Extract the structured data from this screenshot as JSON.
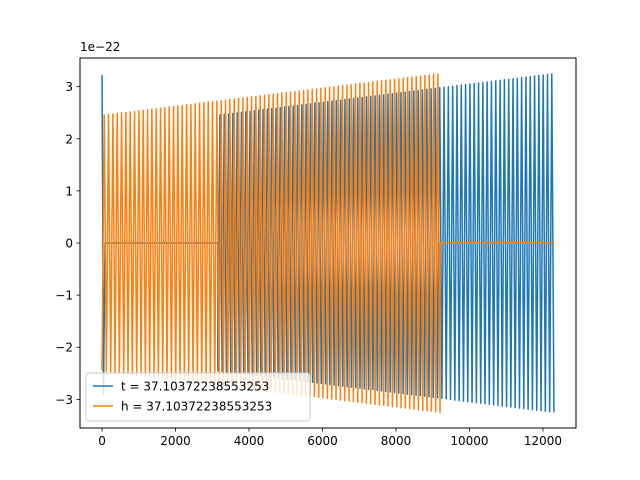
{
  "chart_data": {
    "type": "line",
    "title": "",
    "xlabel": "",
    "ylabel": "",
    "xlim": [
      -600,
      12900
    ],
    "ylim": [
      -3.55,
      3.55
    ],
    "y_offset_label": "1e−22",
    "x_ticks": [
      0,
      2000,
      4000,
      6000,
      8000,
      10000,
      12000
    ],
    "x_tick_labels": [
      "0",
      "2000",
      "4000",
      "6000",
      "8000",
      "10000",
      "12000"
    ],
    "y_ticks": [
      -3,
      -2,
      -1,
      0,
      1,
      2,
      3
    ],
    "y_tick_labels": [
      "−3",
      "−2",
      "−1",
      "0",
      "1",
      "2",
      "3"
    ],
    "grid": false,
    "legend_position": "lower-left",
    "series": [
      {
        "name": "t = 37.10372238553253",
        "color": "#1f77b4",
        "segments": [
          {
            "kind": "spike",
            "x_start": 0,
            "x_end": 80,
            "y_start": 3.22,
            "y_end": -2.9
          },
          {
            "kind": "flat",
            "x_start": 80,
            "x_end": 3150,
            "value": 0
          },
          {
            "kind": "oscillation",
            "x_start": 3150,
            "x_end": 12300,
            "amp_start": 2.45,
            "amp_end": 3.25,
            "cycles": 78
          }
        ]
      },
      {
        "name": "h = 37.10372238553253",
        "color": "#ff7f0e",
        "segments": [
          {
            "kind": "oscillation",
            "x_start": 0,
            "x_end": 9200,
            "amp_start": 2.45,
            "amp_end": 3.25,
            "cycles": 78
          },
          {
            "kind": "flat",
            "x_start": 9200,
            "x_end": 12300,
            "value": 0
          }
        ]
      }
    ]
  }
}
